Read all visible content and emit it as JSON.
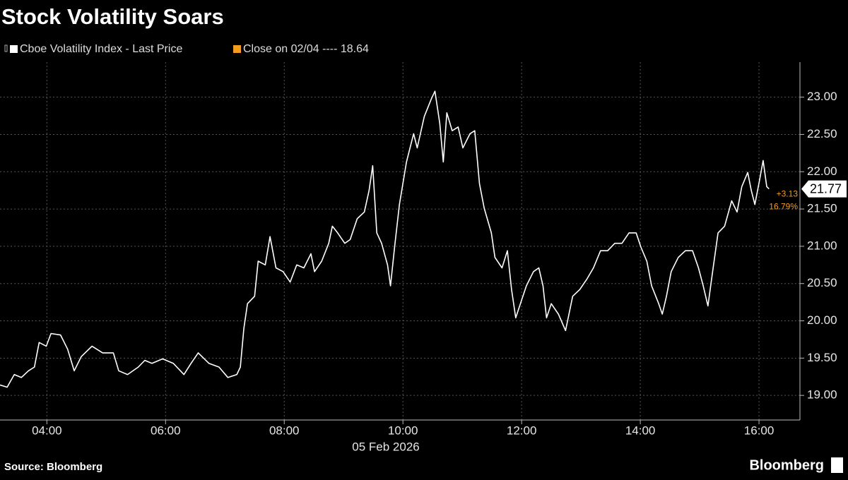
{
  "chart_data": {
    "type": "line",
    "title": "Stock Volatility Soars",
    "x_label": "05 Feb 2026",
    "source": "Source: Bloomberg",
    "brand": "Bloomberg",
    "xlim": [
      3.21,
      16.69
    ],
    "ylim": [
      18.67,
      23.47
    ],
    "xticks": [
      {
        "value": 4,
        "label": "04:00"
      },
      {
        "value": 6,
        "label": "06:00"
      },
      {
        "value": 8,
        "label": "08:00"
      },
      {
        "value": 10,
        "label": "10:00"
      },
      {
        "value": 12,
        "label": "12:00"
      },
      {
        "value": 14,
        "label": "14:00"
      },
      {
        "value": 16,
        "label": "16:00"
      }
    ],
    "yticks": [
      {
        "value": 19,
        "label": "19.00"
      },
      {
        "value": 19.5,
        "label": "19.50"
      },
      {
        "value": 20,
        "label": "20.00"
      },
      {
        "value": 20.5,
        "label": "20.50"
      },
      {
        "value": 21,
        "label": "21.00"
      },
      {
        "value": 21.5,
        "label": "21.50"
      },
      {
        "value": 22,
        "label": "22.00"
      },
      {
        "value": 22.5,
        "label": "22.50"
      },
      {
        "value": 23,
        "label": "23.00"
      }
    ],
    "grid": true,
    "x": [
      3.21,
      3.33,
      3.45,
      3.57,
      3.69,
      3.79,
      3.87,
      3.99,
      4.07,
      4.23,
      4.35,
      4.46,
      4.58,
      4.76,
      4.94,
      5.12,
      5.21,
      5.36,
      5.54,
      5.65,
      5.77,
      5.95,
      6.13,
      6.31,
      6.43,
      6.55,
      6.73,
      6.9,
      7.05,
      7.2,
      7.26,
      7.32,
      7.38,
      7.5,
      7.56,
      7.68,
      7.76,
      7.86,
      7.98,
      8.1,
      8.21,
      8.33,
      8.45,
      8.51,
      8.63,
      8.75,
      8.81,
      8.9,
      9.02,
      9.11,
      9.23,
      9.35,
      9.43,
      9.49,
      9.56,
      9.64,
      9.74,
      9.79,
      9.86,
      9.94,
      10.06,
      10.18,
      10.24,
      10.36,
      10.48,
      10.54,
      10.62,
      10.68,
      10.74,
      10.83,
      10.93,
      11.01,
      11.13,
      11.21,
      11.29,
      11.37,
      11.49,
      11.55,
      11.67,
      11.76,
      11.83,
      11.9,
      12.0,
      12.08,
      12.2,
      12.29,
      12.36,
      12.42,
      12.5,
      12.62,
      12.74,
      12.86,
      12.98,
      13.1,
      13.21,
      13.33,
      13.45,
      13.57,
      13.69,
      13.81,
      13.93,
      14.01,
      14.11,
      14.19,
      14.31,
      14.37,
      14.44,
      14.52,
      14.64,
      14.76,
      14.88,
      14.98,
      15.06,
      15.14,
      15.21,
      15.31,
      15.42,
      15.54,
      15.63,
      15.71,
      15.81,
      15.87,
      15.93,
      16.01,
      16.07,
      16.13,
      16.17
    ],
    "series": [
      {
        "name": "Cboe Volatility Index - Last Price",
        "color": "#ffffff",
        "values": [
          19.14,
          19.11,
          19.28,
          19.24,
          19.33,
          19.38,
          19.71,
          19.66,
          19.83,
          19.81,
          19.62,
          19.33,
          19.52,
          19.66,
          19.57,
          19.57,
          19.33,
          19.28,
          19.38,
          19.47,
          19.43,
          19.49,
          19.43,
          19.28,
          19.43,
          19.57,
          19.43,
          19.38,
          19.24,
          19.28,
          19.38,
          19.9,
          20.23,
          20.33,
          20.8,
          20.75,
          21.13,
          20.71,
          20.66,
          20.52,
          20.75,
          20.71,
          20.9,
          20.66,
          20.8,
          21.04,
          21.27,
          21.18,
          21.04,
          21.09,
          21.37,
          21.46,
          21.75,
          22.08,
          21.18,
          21.04,
          20.75,
          20.47,
          20.99,
          21.56,
          22.13,
          22.51,
          22.32,
          22.74,
          22.98,
          23.08,
          22.65,
          22.13,
          22.79,
          22.55,
          22.6,
          22.32,
          22.51,
          22.55,
          21.84,
          21.51,
          21.18,
          20.85,
          20.71,
          20.94,
          20.42,
          20.04,
          20.28,
          20.47,
          20.66,
          20.71,
          20.47,
          20.04,
          20.23,
          20.09,
          19.87,
          20.33,
          20.42,
          20.56,
          20.71,
          20.94,
          20.94,
          21.04,
          21.04,
          21.18,
          21.18,
          20.99,
          20.8,
          20.47,
          20.23,
          20.09,
          20.33,
          20.66,
          20.85,
          20.94,
          20.94,
          20.71,
          20.47,
          20.2,
          20.61,
          21.18,
          21.27,
          21.61,
          21.46,
          21.8,
          21.99,
          21.75,
          21.56,
          21.89,
          22.15,
          21.8,
          21.77
        ]
      },
      {
        "name": "Close on 02/04 ----",
        "color": "#f39c1f",
        "value": 18.64
      }
    ],
    "change_label": "+3.13",
    "change_pct_label": "16.79%"
  }
}
